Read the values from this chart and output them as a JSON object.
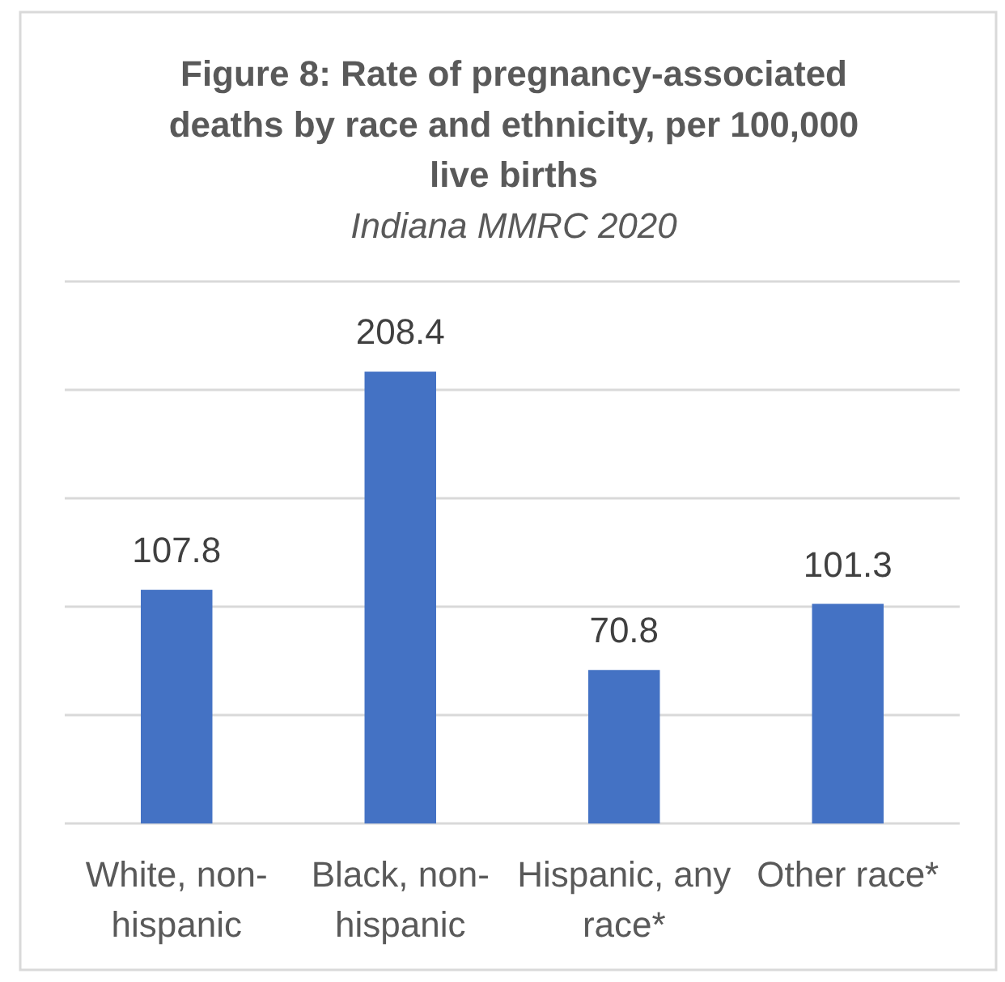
{
  "chart_data": {
    "type": "bar",
    "title": "Figure 8: Rate of pregnancy-associated deaths by race and ethnicity, per 100,000 live births",
    "subtitle": "Indiana MMRC 2020",
    "categories": [
      "White, non-hispanic",
      "Black, non-hispanic",
      "Hispanic, any race*",
      "Other race*"
    ],
    "values": [
      107.8,
      208.4,
      70.8,
      101.3
    ],
    "color": "#4472c4",
    "ylim": [
      0,
      250
    ],
    "yticks": [
      {
        "value": 0,
        "label": null
      },
      {
        "value": 50,
        "label": null
      },
      {
        "value": 100,
        "label": null
      },
      {
        "value": 150,
        "label": null
      },
      {
        "value": 200,
        "label": null
      },
      {
        "value": 250,
        "label": null
      }
    ],
    "grid": "y",
    "tick_labels": "x",
    "data_labels": true
  }
}
